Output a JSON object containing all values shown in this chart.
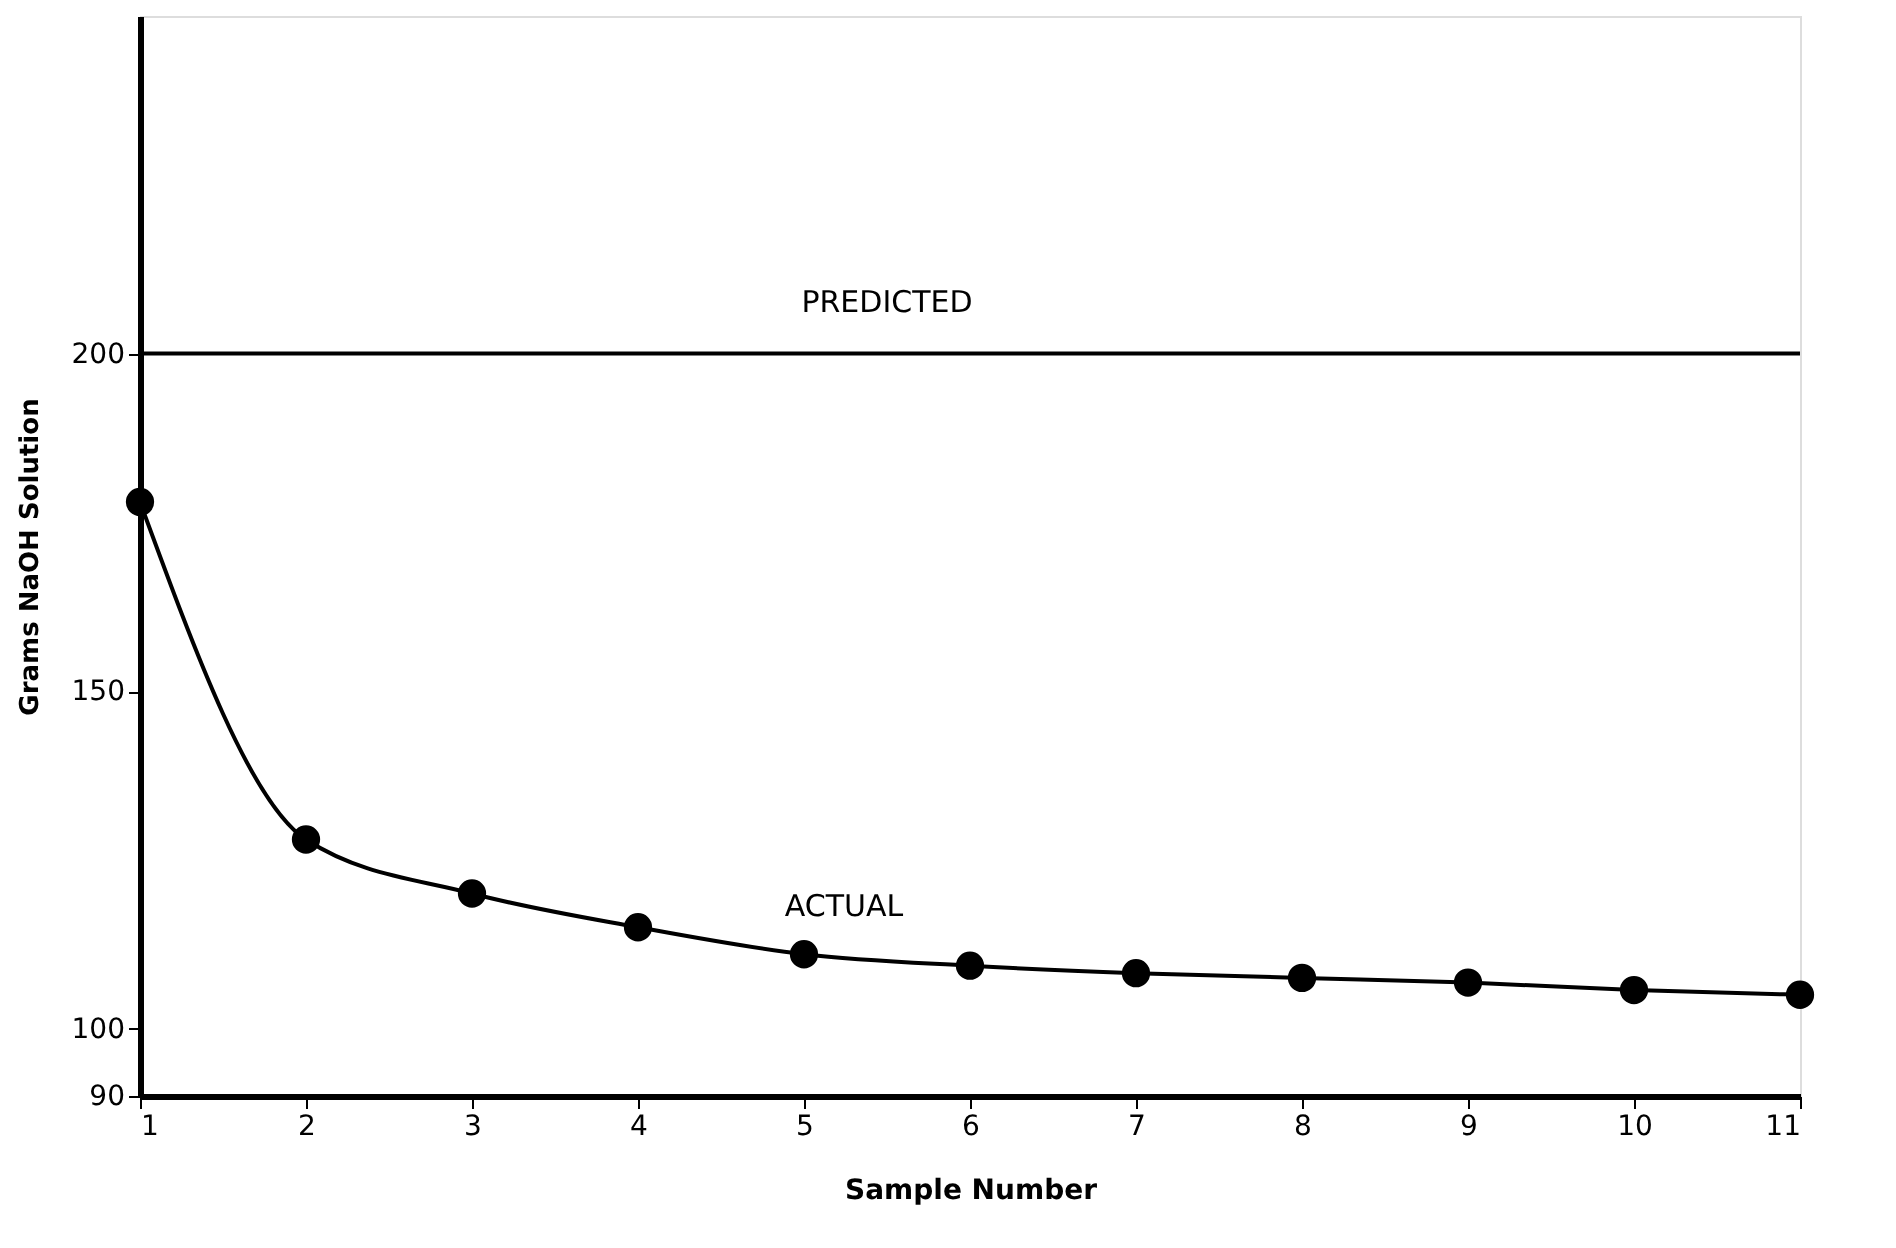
{
  "chart_data": {
    "type": "line",
    "xlabel": "Sample Number",
    "ylabel": "Grams NaOH Solution",
    "x": [
      1,
      2,
      3,
      4,
      5,
      6,
      7,
      8,
      9,
      10,
      11
    ],
    "series": [
      {
        "name": "ACTUAL",
        "color": "#000000",
        "values": [
          178,
          128,
          120,
          115,
          111,
          109.3,
          108.2,
          107.5,
          106.8,
          105.7,
          105
        ]
      }
    ],
    "xlim": [
      1,
      11
    ],
    "xticks": [
      1,
      2,
      3,
      4,
      5,
      6,
      7,
      8,
      9,
      10,
      11
    ],
    "ylim": [
      90,
      250
    ],
    "yticks": [
      90,
      100,
      150,
      200
    ],
    "ref_lines": [
      {
        "axis": "y",
        "value": 200,
        "label": "PREDICTED",
        "color": "#000000",
        "line_style": "solid"
      }
    ],
    "marker": "circle",
    "line_style": "solid",
    "grid": false
  }
}
